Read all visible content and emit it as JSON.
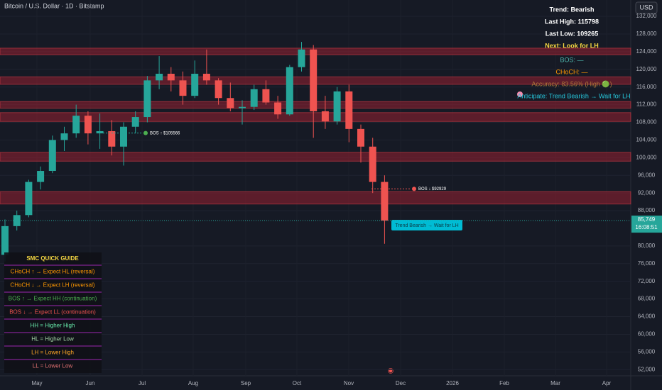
{
  "header": {
    "title": "Bitcoin / U.S. Dollar · 1D · Bitstamp",
    "currency": "USD"
  },
  "chart_data": {
    "type": "candlestick",
    "ylim": [
      50600,
      135700
    ],
    "yticks": [
      {
        "value": 132000,
        "label": "132,000"
      },
      {
        "value": 128000,
        "label": "128,000"
      },
      {
        "value": 124000,
        "label": "124,000"
      },
      {
        "value": 120000,
        "label": "120,000"
      },
      {
        "value": 116000,
        "label": "116,000"
      },
      {
        "value": 112000,
        "label": "112,000"
      },
      {
        "value": 108000,
        "label": "108,000"
      },
      {
        "value": 104000,
        "label": "104,000"
      },
      {
        "value": 100000,
        "label": "100,000"
      },
      {
        "value": 96000,
        "label": "96,000"
      },
      {
        "value": 92000,
        "label": "92,000"
      },
      {
        "value": 88000,
        "label": "88,000"
      },
      {
        "value": 80000,
        "label": "80,000"
      },
      {
        "value": 76000,
        "label": "76,000"
      },
      {
        "value": 72000,
        "label": "72,000"
      },
      {
        "value": 68000,
        "label": "68,000"
      },
      {
        "value": 64000,
        "label": "64,000"
      },
      {
        "value": 60000,
        "label": "60,000"
      },
      {
        "value": 56000,
        "label": "56,000"
      },
      {
        "value": 52000,
        "label": "52,000"
      }
    ],
    "time_labels": [
      "May",
      "Jun",
      "Jul",
      "Aug",
      "Sep",
      "Oct",
      "Nov",
      "Dec",
      "2026",
      "Feb",
      "Mar",
      "Apr"
    ],
    "up_color": "#26a69a",
    "down_color": "#ef5350",
    "candles": [
      {
        "open": 78000,
        "high": 86000,
        "low": 76500,
        "close": 84500
      },
      {
        "open": 84500,
        "high": 88000,
        "low": 83500,
        "close": 87000
      },
      {
        "open": 87000,
        "high": 95000,
        "low": 86500,
        "close": 94500
      },
      {
        "open": 94500,
        "high": 98000,
        "low": 92800,
        "close": 97000
      },
      {
        "open": 97000,
        "high": 105000,
        "low": 96500,
        "close": 104000
      },
      {
        "open": 104000,
        "high": 107000,
        "low": 101500,
        "close": 105500
      },
      {
        "open": 105500,
        "high": 112000,
        "low": 104500,
        "close": 109500
      },
      {
        "open": 109500,
        "high": 110500,
        "low": 103000,
        "close": 105500
      },
      {
        "open": 105500,
        "high": 110000,
        "low": 102000,
        "close": 106000
      },
      {
        "open": 106000,
        "high": 108500,
        "low": 100500,
        "close": 102500
      },
      {
        "open": 102500,
        "high": 108000,
        "low": 98200,
        "close": 107000
      },
      {
        "open": 107000,
        "high": 110500,
        "low": 105500,
        "close": 109200
      },
      {
        "open": 109200,
        "high": 118500,
        "low": 108000,
        "close": 117500
      },
      {
        "open": 117500,
        "high": 123000,
        "low": 115500,
        "close": 119000
      },
      {
        "open": 119000,
        "high": 120500,
        "low": 115000,
        "close": 117500
      },
      {
        "open": 117500,
        "high": 119500,
        "low": 112000,
        "close": 114000
      },
      {
        "open": 114000,
        "high": 122000,
        "low": 113500,
        "close": 119000
      },
      {
        "open": 119000,
        "high": 124500,
        "low": 116500,
        "close": 117500
      },
      {
        "open": 117500,
        "high": 118000,
        "low": 112000,
        "close": 113500
      },
      {
        "open": 113500,
        "high": 117000,
        "low": 110500,
        "close": 111200
      },
      {
        "open": 111200,
        "high": 113000,
        "low": 107500,
        "close": 111500
      },
      {
        "open": 111500,
        "high": 116500,
        "low": 110800,
        "close": 115500
      },
      {
        "open": 115500,
        "high": 117500,
        "low": 112000,
        "close": 112500
      },
      {
        "open": 112500,
        "high": 114000,
        "low": 108800,
        "close": 109800
      },
      {
        "open": 109800,
        "high": 121000,
        "low": 109500,
        "close": 120500
      },
      {
        "open": 120500,
        "high": 126200,
        "low": 119500,
        "close": 124500
      },
      {
        "open": 124500,
        "high": 125500,
        "low": 104500,
        "close": 110500
      },
      {
        "open": 110500,
        "high": 114000,
        "low": 106500,
        "close": 108200
      },
      {
        "open": 108200,
        "high": 116000,
        "low": 107500,
        "close": 115000
      },
      {
        "open": 115000,
        "high": 116500,
        "low": 103500,
        "close": 106500
      },
      {
        "open": 106500,
        "high": 107500,
        "low": 98900,
        "close": 102500
      },
      {
        "open": 102500,
        "high": 104500,
        "low": 92000,
        "close": 94500
      },
      {
        "open": 94500,
        "high": 96000,
        "low": 80500,
        "close": 85749
      }
    ],
    "zones": [
      [
        123300,
        124800
      ],
      [
        116600,
        118300
      ],
      [
        111200,
        112700
      ],
      [
        108200,
        110200
      ],
      [
        99200,
        101200
      ],
      [
        89500,
        92300
      ]
    ],
    "price_tag": {
      "value": 85749,
      "label": "85,749"
    },
    "timer": "16:08:51",
    "annotations": [
      {
        "text": "BOS ↑ $105566",
        "value": 105566
      },
      {
        "text": "BOS ↓ $92929",
        "value": 92929
      }
    ],
    "callout": "Trend Bearish → Wait for LH"
  },
  "info_panel": [
    {
      "text": "Trend: Bearish",
      "color": "#ffffff"
    },
    {
      "text": "Last High: 115798",
      "color": "#ffffff"
    },
    {
      "text": "Last Low: 109265",
      "color": "#ffffff"
    },
    {
      "text": "Next: Look for LH",
      "color": "#f5d742"
    },
    {
      "text": "BOS: —",
      "color": "#4db6ac"
    },
    {
      "text": "CHoCH: —",
      "color": "#ff9800"
    },
    {
      "text": "Accuracy: 83.56% (High 🟢)",
      "color": "#b0773a"
    },
    {
      "text": "Anticipate: Trend Bearish → Wait for LH",
      "color": "#26c6da"
    }
  ],
  "guide": {
    "title": "SMC QUICK GUIDE",
    "rows": [
      {
        "text": "CHoCH ↑ → Expect HL (reversal)",
        "color": "#ff9800"
      },
      {
        "text": "CHoCH ↓ → Expect LH (reversal)",
        "color": "#ff9800"
      },
      {
        "text": "BOS ↑ → Expect HH (continuation)",
        "color": "#4caf50"
      },
      {
        "text": "BOS ↓ → Expect LL (continuation)",
        "color": "#ef5350"
      },
      {
        "text": "HH = Higher High",
        "color": "#69f0ae"
      },
      {
        "text": "HL = Higher Low",
        "color": "#a5d6a7"
      },
      {
        "text": "LH = Lower High",
        "color": "#ffa726"
      },
      {
        "text": "LL = Lower Low",
        "color": "#e57373"
      }
    ]
  }
}
